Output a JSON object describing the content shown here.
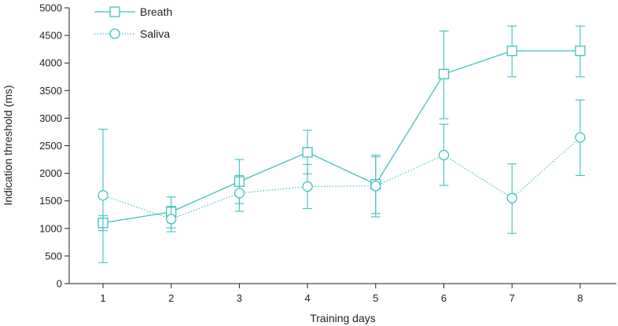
{
  "colors": {
    "series": "#3fc1c0",
    "axis": "#222222"
  },
  "chart_data": {
    "type": "line",
    "title": "",
    "xlabel": "Training days",
    "ylabel": "Indication threshold (ms)",
    "categories": [
      "1",
      "2",
      "3",
      "4",
      "5",
      "6",
      "7",
      "8"
    ],
    "x": [
      1,
      2,
      3,
      4,
      5,
      6,
      7,
      8
    ],
    "ylim": [
      0,
      5000
    ],
    "yticks": [
      0,
      500,
      1000,
      1500,
      2000,
      2500,
      3000,
      3500,
      4000,
      4500,
      5000
    ],
    "ytick_labels": [
      "0",
      "500",
      "1000",
      "1500",
      "2000",
      "2500",
      "3000",
      "3500",
      "4000",
      "4500",
      "5000"
    ],
    "legend_position": "top-left",
    "series": [
      {
        "name": "Breath",
        "marker": "square",
        "line_style": "solid",
        "values": [
          1100,
          1300,
          1850,
          2380,
          1800,
          3800,
          4220,
          4220
        ],
        "error_low": [
          380,
          1010,
          1450,
          1990,
          1270,
          2990,
          3750,
          3750
        ],
        "error_high": [
          1230,
          1570,
          2250,
          2780,
          2330,
          4580,
          4670,
          4670
        ]
      },
      {
        "name": "Saliva",
        "marker": "circle",
        "line_style": "dotted",
        "values": [
          1600,
          1170,
          1640,
          1760,
          1770,
          2330,
          1550,
          2650
        ],
        "error_low": [
          960,
          940,
          1310,
          1360,
          1210,
          1780,
          910,
          1960
        ],
        "error_high": [
          2800,
          1400,
          1960,
          2160,
          2300,
          2890,
          2170,
          3330
        ]
      }
    ]
  }
}
